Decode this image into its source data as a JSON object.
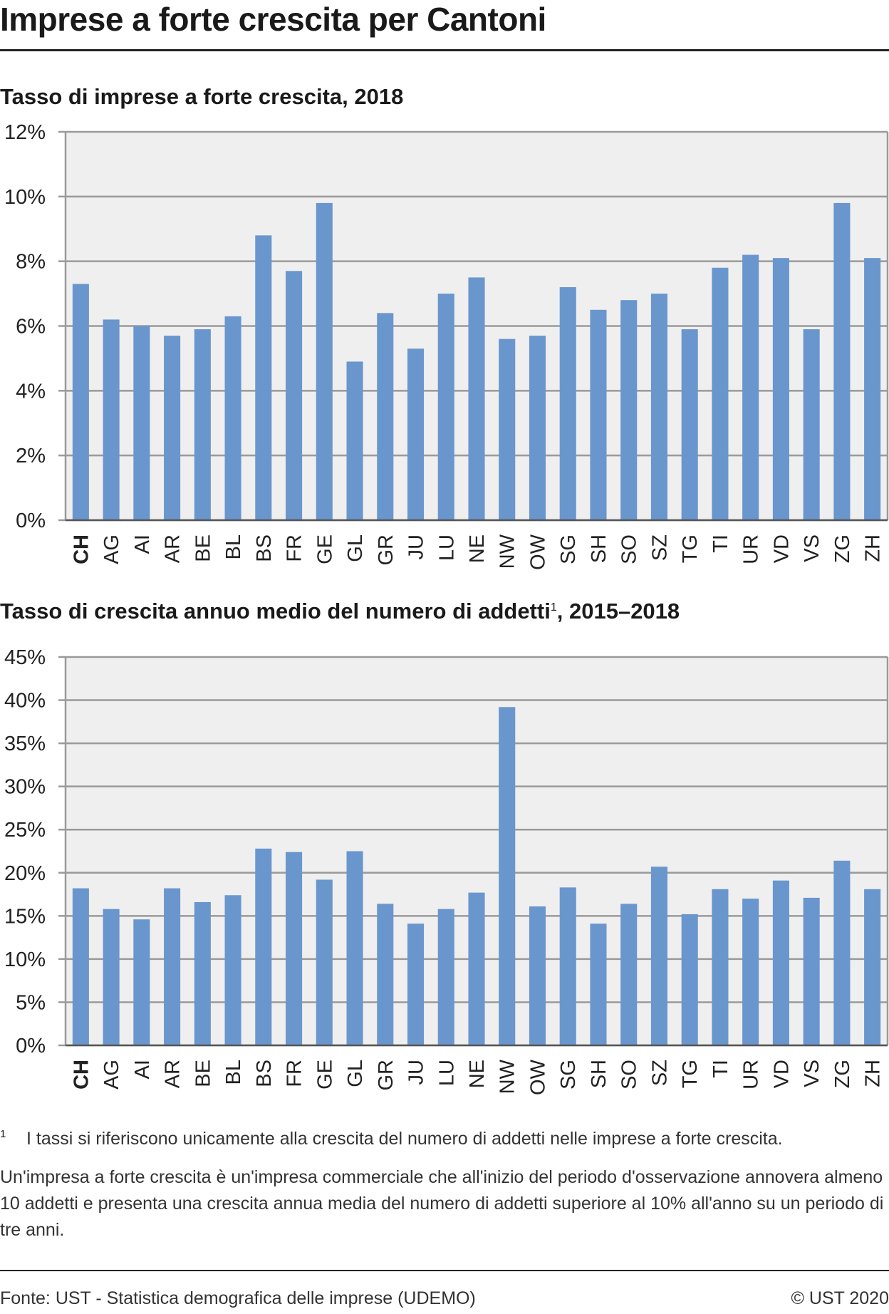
{
  "header": {
    "title": "Imprese a forte crescita per Cantoni"
  },
  "chart_data": [
    {
      "type": "bar",
      "title": "Tasso di imprese a forte crescita, 2018",
      "categories": [
        "CH",
        "AG",
        "AI",
        "AR",
        "BE",
        "BL",
        "BS",
        "FR",
        "GE",
        "GL",
        "GR",
        "JU",
        "LU",
        "NE",
        "NW",
        "OW",
        "SG",
        "SH",
        "SO",
        "SZ",
        "TG",
        "TI",
        "UR",
        "VD",
        "VS",
        "ZG",
        "ZH"
      ],
      "values": [
        7.3,
        6.2,
        6.0,
        5.7,
        5.9,
        6.3,
        8.8,
        7.7,
        9.8,
        4.9,
        6.4,
        5.3,
        7.0,
        7.5,
        5.6,
        5.7,
        7.2,
        6.5,
        6.8,
        7.0,
        5.9,
        7.8,
        8.2,
        8.1,
        5.9,
        9.8,
        8.1
      ],
      "ylim": [
        0,
        12
      ],
      "yticks": [
        0,
        2,
        4,
        6,
        8,
        10,
        12
      ],
      "ytick_labels": [
        "0%",
        "2%",
        "4%",
        "6%",
        "8%",
        "10%",
        "12%"
      ],
      "bold_category": "CH",
      "bar_color": "#6a96ce",
      "grid": true
    },
    {
      "type": "bar",
      "title": "Tasso di crescita annuo medio del numero di addetti",
      "title_sup": "1",
      "title_suffix": ", 2015–2018",
      "categories": [
        "CH",
        "AG",
        "AI",
        "AR",
        "BE",
        "BL",
        "BS",
        "FR",
        "GE",
        "GL",
        "GR",
        "JU",
        "LU",
        "NE",
        "NW",
        "OW",
        "SG",
        "SH",
        "SO",
        "SZ",
        "TG",
        "TI",
        "UR",
        "VD",
        "VS",
        "ZG",
        "ZH"
      ],
      "values": [
        18.2,
        15.8,
        14.6,
        18.2,
        16.6,
        17.4,
        22.8,
        22.4,
        19.2,
        22.5,
        16.4,
        14.1,
        15.8,
        17.7,
        39.2,
        16.1,
        18.3,
        14.1,
        16.4,
        20.7,
        15.2,
        18.1,
        17.0,
        19.1,
        17.1,
        21.4,
        18.1
      ],
      "ylim": [
        0,
        45
      ],
      "yticks": [
        0,
        5,
        10,
        15,
        20,
        25,
        30,
        35,
        40,
        45
      ],
      "ytick_labels": [
        "0%",
        "5%",
        "10%",
        "15%",
        "20%",
        "25%",
        "30%",
        "35%",
        "40%",
        "45%"
      ],
      "bold_category": "CH",
      "bar_color": "#6a96ce",
      "grid": true
    }
  ],
  "notes": {
    "footnote_number": "1",
    "footnote_text": "I tassi si riferiscono unicamente alla crescita del numero di addetti nelle imprese a forte crescita.",
    "definition": "Un'impresa a forte crescita è un'impresa commerciale che all'inizio del periodo d'osservazione annovera almeno 10 addetti e presenta una crescita annua media del numero di addetti superiore al 10% all'anno su un periodo di tre anni."
  },
  "footer": {
    "source": "Fonte: UST - Statistica demografica delle imprese (UDEMO)",
    "copyright": "© UST 2020"
  },
  "colors": {
    "plot_background": "#efefef",
    "gridline": "#9a9a9a",
    "bar": "#6a96ce",
    "rule": "#222222"
  }
}
